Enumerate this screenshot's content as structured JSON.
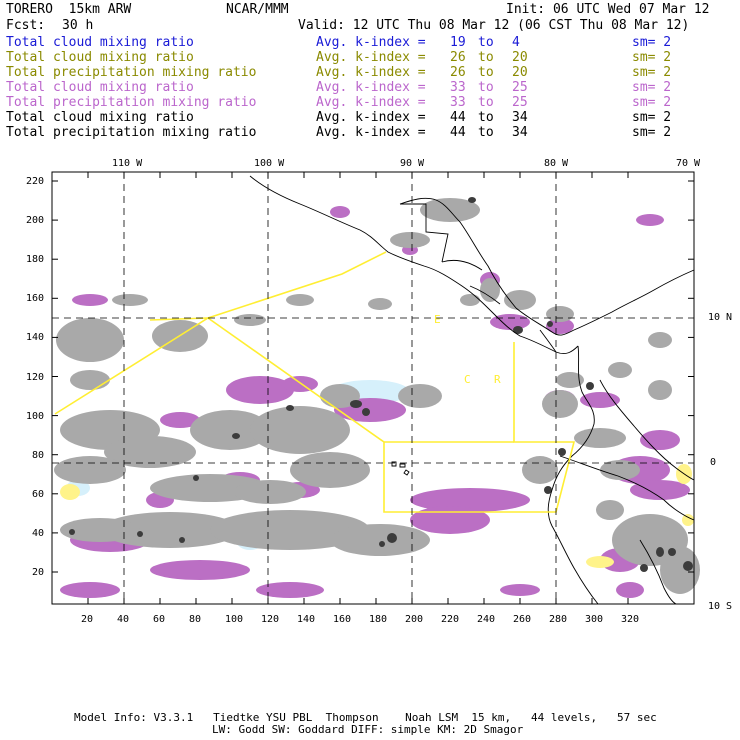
{
  "header": {
    "model": "TORERO  15km ARW",
    "center": "NCAR/MMM",
    "init": "Init: 06 UTC Wed 07 Mar 12",
    "fcst_label": "Fcst:",
    "fcst_value": "30 h",
    "valid": "Valid: 12 UTC Thu 08 Mar 12 (06 CST Thu 08 Mar 12)"
  },
  "legend": [
    {
      "field": "Total cloud mixing ratio",
      "index": "Avg. k-index =",
      "from": "19",
      "to_word": "to",
      "to": "4",
      "sm": "sm= 2",
      "color": "#1a1ad6"
    },
    {
      "field": "Total cloud mixing ratio",
      "index": "Avg. k-index =",
      "from": "26",
      "to_word": "to",
      "to": "20",
      "sm": "sm= 2",
      "color": "#8a8a00"
    },
    {
      "field": "Total precipitation mixing ratio",
      "index": "Avg. k-index =",
      "from": "26",
      "to_word": "to",
      "to": "20",
      "sm": "sm= 2",
      "color": "#8a8a00"
    },
    {
      "field": "Total cloud mixing ratio",
      "index": "Avg. k-index =",
      "from": "33",
      "to_word": "to",
      "to": "25",
      "sm": "sm= 2",
      "color": "#bb66cc"
    },
    {
      "field": "Total precipitation mixing ratio",
      "index": "Avg. k-index =",
      "from": "33",
      "to_word": "to",
      "to": "25",
      "sm": "sm= 2",
      "color": "#bb66cc"
    },
    {
      "field": "Total cloud mixing ratio",
      "index": "Avg. k-index =",
      "from": "44",
      "to_word": "to",
      "to": "34",
      "sm": "sm= 2",
      "color": "#000000"
    },
    {
      "field": "Total precipitation mixing ratio",
      "index": "Avg. k-index =",
      "from": "44",
      "to_word": "to",
      "to": "34",
      "sm": "sm= 2",
      "color": "#000000"
    }
  ],
  "axes": {
    "lon_labels": [
      "110 W",
      "100 W",
      "90 W",
      "80 W",
      "70 W"
    ],
    "lat_labels": [
      "10 N",
      "0",
      "10 S"
    ],
    "x_ticks": [
      "20",
      "40",
      "60",
      "80",
      "100",
      "120",
      "140",
      "160",
      "180",
      "200",
      "220",
      "240",
      "260",
      "280",
      "300",
      "320"
    ],
    "y_ticks": [
      "220",
      "200",
      "180",
      "160",
      "140",
      "120",
      "100",
      "80",
      "60",
      "40",
      "20"
    ]
  },
  "map_labels": {
    "e_letter": "E",
    "c_letter": "C",
    "r_letter": "R"
  },
  "footer": {
    "line1": "Model Info: V3.3.1   Tiedtke YSU PBL  Thompson    Noah LSM  15 km,   44 levels,   57 sec",
    "line2": "LW: Godd SW: Goddard DIFF: simple KM: 2D Smagor"
  },
  "colors": {
    "cloud_gray": "#a9a9a9",
    "cloud_dark": "#3c3c3c",
    "precip_purple": "#bb6fc4",
    "light_cyan": "#d6f0fb",
    "light_yellow": "#fff38a",
    "domain_yellow": "#ffee33"
  }
}
